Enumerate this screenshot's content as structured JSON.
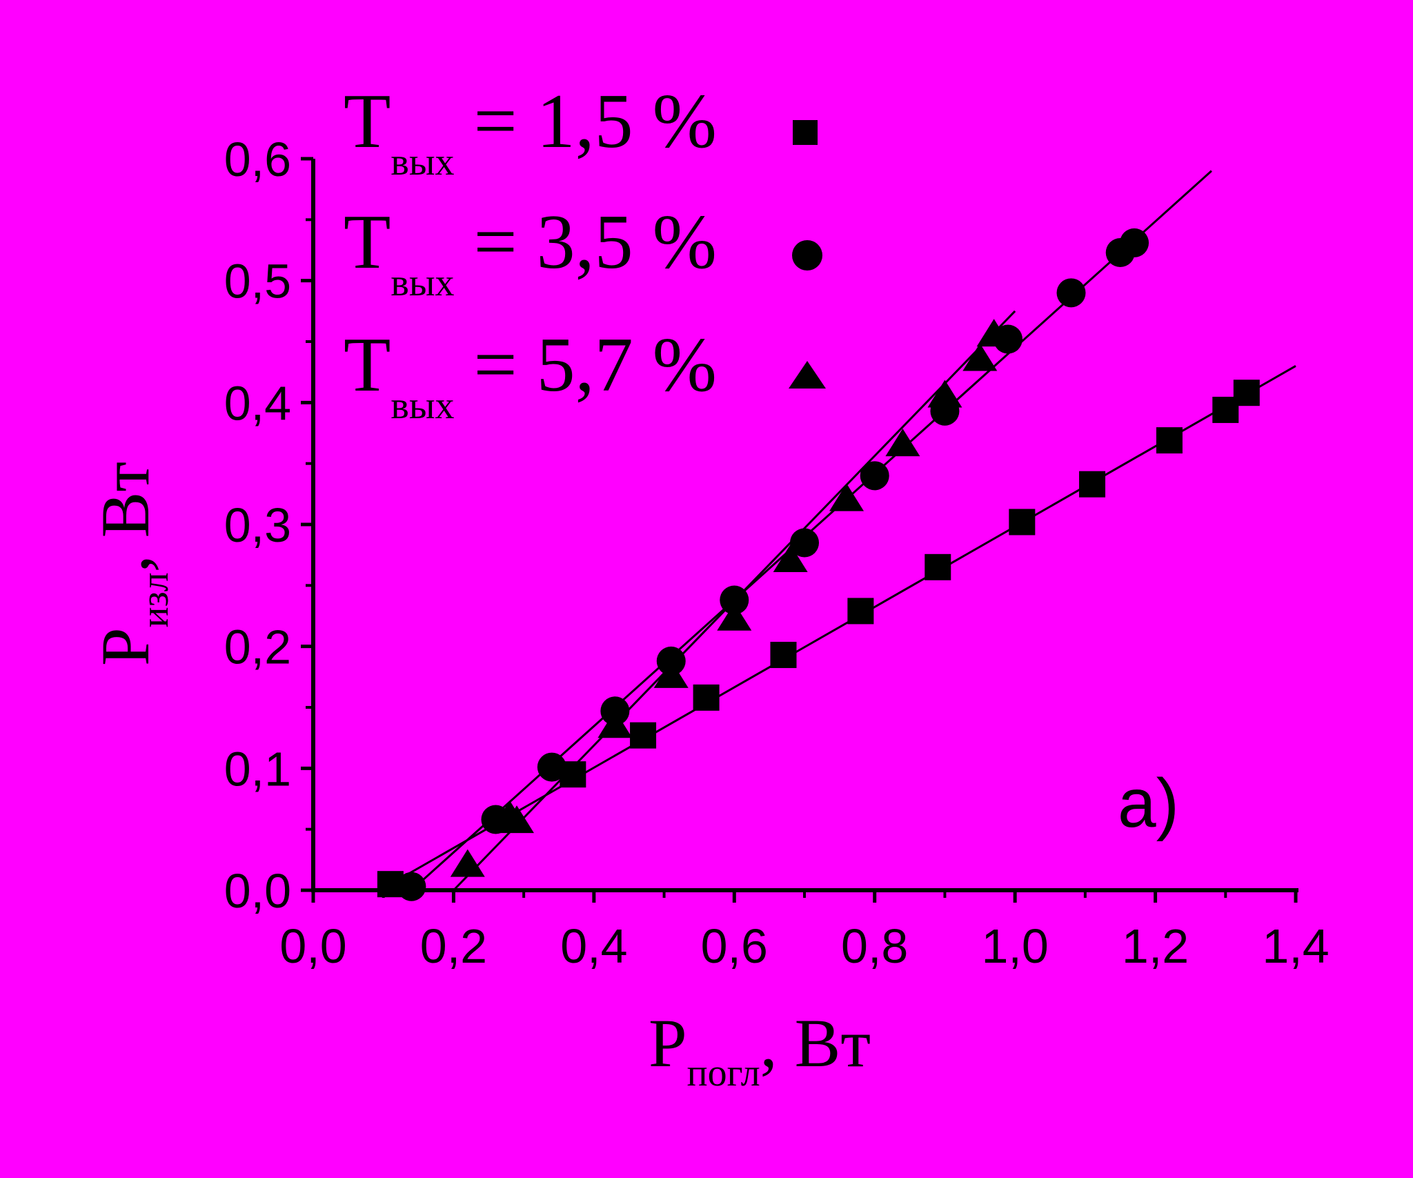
{
  "colors": {
    "background": "#ff00ff",
    "foreground": "#000000"
  },
  "chart_data": {
    "type": "scatter",
    "title": "",
    "panel_label": "a)",
    "xlabel": {
      "main": "P",
      "sub": "погл",
      "unit": ", Вт"
    },
    "ylabel": {
      "main": "P",
      "sub": "изл",
      "unit": ", Вт"
    },
    "xlim": [
      0.0,
      1.4
    ],
    "ylim": [
      0.0,
      0.6
    ],
    "xticks": [
      0.0,
      0.2,
      0.4,
      0.6,
      0.8,
      1.0,
      1.2,
      1.4
    ],
    "yticks": [
      0.0,
      0.1,
      0.2,
      0.3,
      0.4,
      0.5,
      0.6
    ],
    "xtick_labels": [
      "0,0",
      "0,2",
      "0,4",
      "0,6",
      "0,8",
      "1,0",
      "1,2",
      "1,4"
    ],
    "ytick_labels": [
      "0,0",
      "0,1",
      "0,2",
      "0,3",
      "0,4",
      "0,5",
      "0,6"
    ],
    "grid": false,
    "legend_position": "top-left",
    "series": [
      {
        "legend_main": "T",
        "legend_sub": "вых",
        "legend_value": " = 1,5 %",
        "marker": "square",
        "x": [
          0.11,
          0.37,
          0.47,
          0.56,
          0.67,
          0.78,
          0.89,
          1.01,
          1.11,
          1.22,
          1.3,
          1.33
        ],
        "y": [
          0.005,
          0.095,
          0.127,
          0.158,
          0.193,
          0.229,
          0.265,
          0.302,
          0.333,
          0.369,
          0.394,
          0.408
        ],
        "fit": {
          "x": [
            0.11,
            1.4
          ],
          "y": [
            0.005,
            0.43
          ]
        }
      },
      {
        "legend_main": "T",
        "legend_sub": "вых",
        "legend_value": " = 3,5 %",
        "marker": "circle",
        "x": [
          0.14,
          0.26,
          0.34,
          0.43,
          0.51,
          0.6,
          0.7,
          0.8,
          0.9,
          0.99,
          1.08,
          1.15,
          1.17
        ],
        "y": [
          0.003,
          0.058,
          0.101,
          0.147,
          0.188,
          0.238,
          0.285,
          0.34,
          0.393,
          0.452,
          0.49,
          0.523,
          0.531
        ],
        "fit": {
          "x": [
            0.14,
            1.28
          ],
          "y": [
            0.0,
            0.59
          ]
        }
      },
      {
        "legend_main": "T",
        "legend_sub": "вых",
        "legend_value": " = 5,7 %",
        "marker": "triangle",
        "x": [
          0.22,
          0.28,
          0.29,
          0.43,
          0.51,
          0.6,
          0.68,
          0.76,
          0.84,
          0.9,
          0.95,
          0.97
        ],
        "y": [
          0.02,
          0.06,
          0.056,
          0.134,
          0.175,
          0.222,
          0.27,
          0.32,
          0.365,
          0.405,
          0.435,
          0.455
        ],
        "fit": {
          "x": [
            0.2,
            1.0
          ],
          "y": [
            0.0,
            0.475
          ]
        }
      }
    ]
  }
}
